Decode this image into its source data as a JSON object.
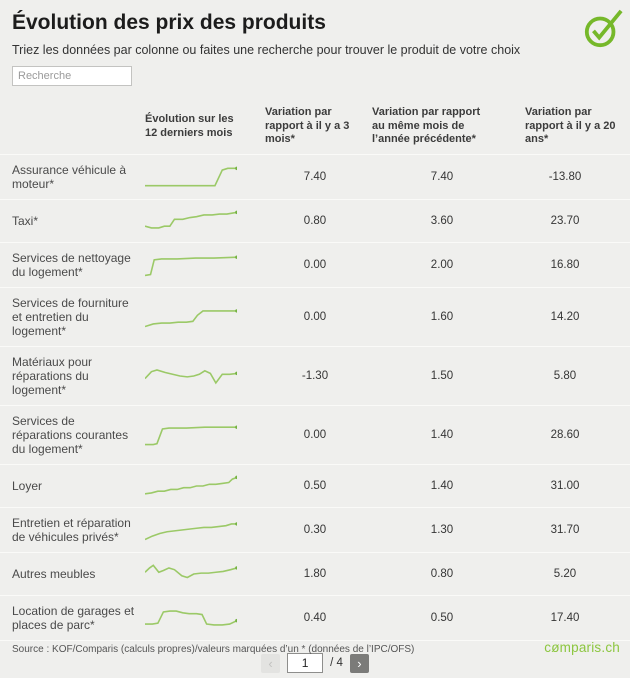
{
  "page": {
    "title": "Évolution des prix des produits",
    "subtitle": "Triez les données par colonne ou faites une recherche pour trouver le produit de votre choix",
    "search_placeholder": "Recherche",
    "source_text": "Source : KOF/Comparis (calculs propres)/valeurs marquées d’un * (données de l’IPC/OFS)",
    "logo_text": "cømparis.ch"
  },
  "colors": {
    "sparkline": "#9bc967",
    "sparkline_dot": "#74b243",
    "check_green": "#76b82a",
    "logo_green": "#8cc63f"
  },
  "table": {
    "headers": {
      "evolution": "Évolution sur les 12 derniers mois",
      "m3": "Variation par rapport à il y a 3 mois*",
      "y1": "Variation par rapport au même mois de l’année précédente*",
      "y20": "Variation par rapport à il y a 20 ans*"
    },
    "rows": [
      {
        "name": "Assurance véhicule à moteur*",
        "m3": "7.40",
        "y1": "7.40",
        "y20": "-13.80",
        "spark": [
          [
            0,
            25
          ],
          [
            40,
            25
          ],
          [
            76,
            25
          ],
          [
            84,
            7
          ],
          [
            90,
            5
          ],
          [
            100,
            5
          ]
        ]
      },
      {
        "name": "Taxi*",
        "m3": "0.80",
        "y1": "3.60",
        "y20": "23.70",
        "spark": [
          [
            0,
            21
          ],
          [
            7,
            23
          ],
          [
            15,
            23
          ],
          [
            21,
            21
          ],
          [
            27,
            21
          ],
          [
            32,
            13
          ],
          [
            41,
            13
          ],
          [
            49,
            11
          ],
          [
            56,
            10
          ],
          [
            64,
            8
          ],
          [
            73,
            8
          ],
          [
            81,
            7
          ],
          [
            89,
            7
          ],
          [
            100,
            5
          ]
        ]
      },
      {
        "name": "Services de nettoyage du logement*",
        "m3": "0.00",
        "y1": "2.00",
        "y20": "16.80",
        "spark": [
          [
            0,
            27
          ],
          [
            6,
            26
          ],
          [
            10,
            9
          ],
          [
            18,
            8
          ],
          [
            35,
            8
          ],
          [
            55,
            7
          ],
          [
            75,
            7
          ],
          [
            100,
            6
          ]
        ]
      },
      {
        "name": "Services de fourniture et entretien du logement*",
        "m3": "0.00",
        "y1": "1.60",
        "y20": "14.20",
        "spark": [
          [
            0,
            26
          ],
          [
            9,
            23
          ],
          [
            18,
            22
          ],
          [
            27,
            22
          ],
          [
            36,
            21
          ],
          [
            45,
            21
          ],
          [
            52,
            20
          ],
          [
            57,
            13
          ],
          [
            63,
            8
          ],
          [
            72,
            8
          ],
          [
            82,
            8
          ],
          [
            100,
            8
          ]
        ]
      },
      {
        "name": "Matériaux pour réparations du logement*",
        "m3": "-1.30",
        "y1": "1.50",
        "y20": "5.80",
        "spark": [
          [
            0,
            18
          ],
          [
            7,
            10
          ],
          [
            13,
            8
          ],
          [
            22,
            11
          ],
          [
            30,
            13
          ],
          [
            38,
            15
          ],
          [
            46,
            16
          ],
          [
            53,
            15
          ],
          [
            59,
            13
          ],
          [
            65,
            9
          ],
          [
            71,
            12
          ],
          [
            77,
            23
          ],
          [
            84,
            13
          ],
          [
            92,
            13
          ],
          [
            100,
            12
          ]
        ]
      },
      {
        "name": "Services de réparations courantes du logement*",
        "m3": "0.00",
        "y1": "1.40",
        "y20": "28.60",
        "spark": [
          [
            0,
            26
          ],
          [
            9,
            26
          ],
          [
            13,
            25
          ],
          [
            19,
            8
          ],
          [
            26,
            7
          ],
          [
            45,
            7
          ],
          [
            65,
            6
          ],
          [
            100,
            6
          ]
        ]
      },
      {
        "name": "Loyer",
        "m3": "0.50",
        "y1": "1.40",
        "y20": "31.00",
        "spark": [
          [
            0,
            24
          ],
          [
            7,
            23
          ],
          [
            14,
            21
          ],
          [
            21,
            21
          ],
          [
            28,
            19
          ],
          [
            35,
            19
          ],
          [
            42,
            17
          ],
          [
            49,
            17
          ],
          [
            56,
            15
          ],
          [
            63,
            15
          ],
          [
            70,
            13
          ],
          [
            77,
            13
          ],
          [
            84,
            12
          ],
          [
            91,
            11
          ],
          [
            95,
            7
          ],
          [
            100,
            5
          ]
        ]
      },
      {
        "name": "Entretien et réparation de véhicules privés*",
        "m3": "0.30",
        "y1": "1.30",
        "y20": "31.70",
        "spark": [
          [
            0,
            26
          ],
          [
            8,
            22
          ],
          [
            16,
            19
          ],
          [
            24,
            17
          ],
          [
            32,
            16
          ],
          [
            40,
            15
          ],
          [
            48,
            14
          ],
          [
            56,
            13
          ],
          [
            64,
            12
          ],
          [
            72,
            12
          ],
          [
            80,
            11
          ],
          [
            88,
            10
          ],
          [
            94,
            8
          ],
          [
            100,
            8
          ]
        ]
      },
      {
        "name": "Autres meubles",
        "m3": "1.80",
        "y1": "0.80",
        "y20": "5.20",
        "spark": [
          [
            0,
            13
          ],
          [
            5,
            8
          ],
          [
            9,
            5
          ],
          [
            15,
            13
          ],
          [
            20,
            11
          ],
          [
            26,
            8
          ],
          [
            32,
            10
          ],
          [
            40,
            17
          ],
          [
            46,
            19
          ],
          [
            53,
            15
          ],
          [
            61,
            14
          ],
          [
            69,
            14
          ],
          [
            77,
            13
          ],
          [
            85,
            12
          ],
          [
            93,
            10
          ],
          [
            100,
            8
          ]
        ]
      },
      {
        "name": "Location de garages et places de parc*",
        "m3": "0.40",
        "y1": "0.50",
        "y20": "17.40",
        "spark": [
          [
            0,
            22
          ],
          [
            8,
            22
          ],
          [
            14,
            21
          ],
          [
            20,
            8
          ],
          [
            27,
            7
          ],
          [
            34,
            7
          ],
          [
            41,
            9
          ],
          [
            48,
            10
          ],
          [
            56,
            10
          ],
          [
            62,
            11
          ],
          [
            67,
            22
          ],
          [
            75,
            23
          ],
          [
            84,
            23
          ],
          [
            92,
            22
          ],
          [
            100,
            18
          ]
        ]
      }
    ]
  },
  "pagination": {
    "prev_icon": "‹",
    "next_icon": "›",
    "current_page": "1",
    "total_label": "/ 4"
  }
}
